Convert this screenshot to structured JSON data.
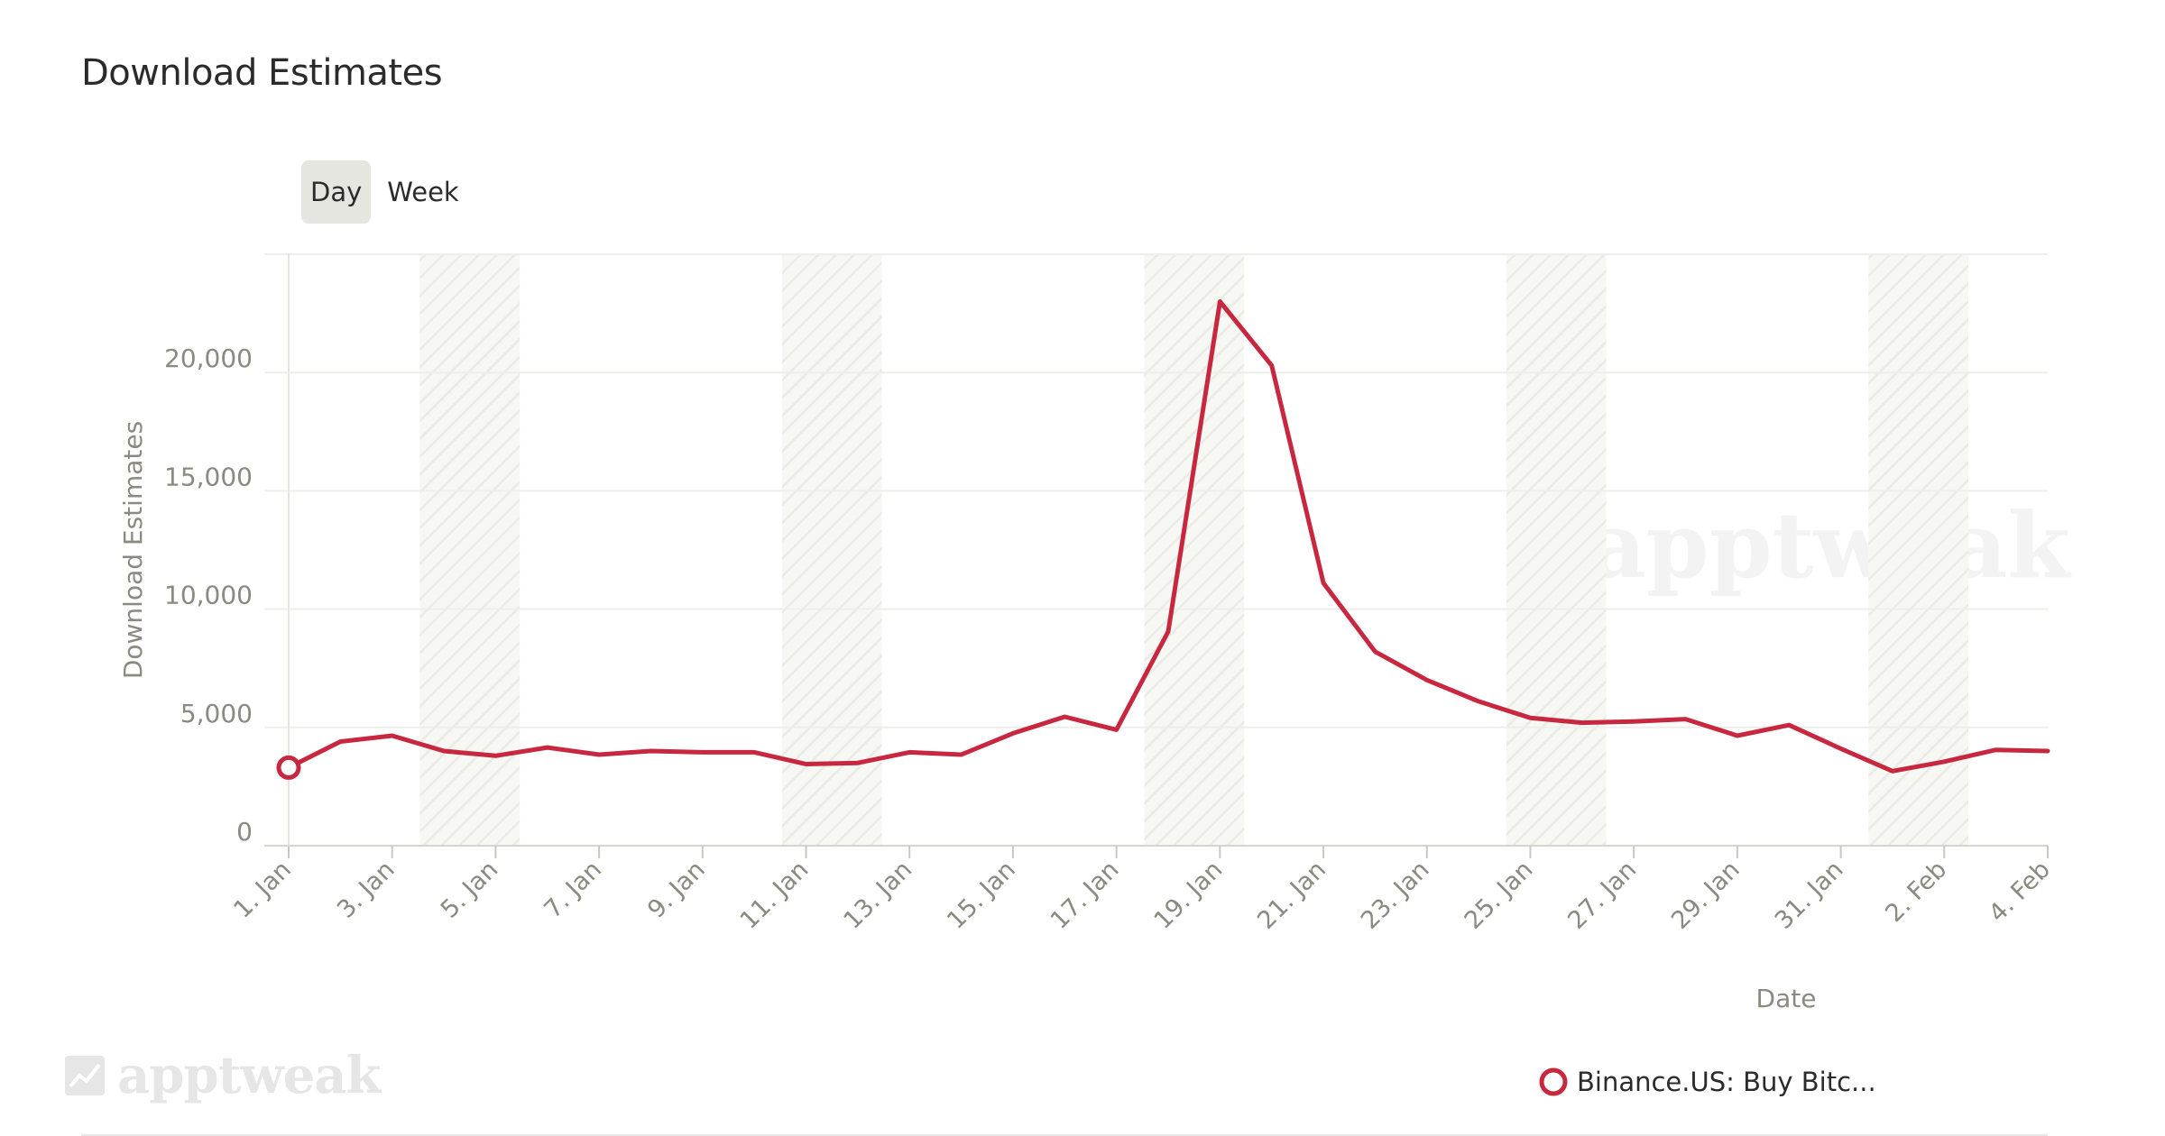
{
  "header": {
    "title": "Download Estimates"
  },
  "toggle": {
    "day_label": "Day",
    "week_label": "Week",
    "selected": "Day"
  },
  "brand": {
    "logo_text": "apptweak",
    "logo_icon": "apptweak-logo-icon"
  },
  "colors": {
    "series": "#c8283f",
    "axis_text": "#8a8a80",
    "grid": "#eeeeea",
    "weekend_band": "#f6f6f2",
    "toggle_active_bg": "#e6e6e0"
  },
  "chart_data": {
    "type": "line",
    "xlabel": "Date",
    "ylabel": "Download Estimates",
    "ylim": [
      0,
      25000
    ],
    "yticks": [
      0,
      5000,
      10000,
      15000,
      20000
    ],
    "ytick_labels": [
      "0",
      "5,000",
      "10,000",
      "15,000",
      "20,000"
    ],
    "grid": true,
    "legend_position": "bottom-right",
    "x_tick_labels": [
      "1. Jan",
      "3. Jan",
      "5. Jan",
      "7. Jan",
      "9. Jan",
      "11. Jan",
      "13. Jan",
      "15. Jan",
      "17. Jan",
      "19. Jan",
      "21. Jan",
      "23. Jan",
      "25. Jan",
      "27. Jan",
      "29. Jan",
      "31. Jan",
      "2. Feb",
      "4. Feb"
    ],
    "weekend_bands": [
      [
        "4. Jan",
        "5. Jan"
      ],
      [
        "11. Jan",
        "12. Jan"
      ],
      [
        "18. Jan",
        "19. Jan"
      ],
      [
        "25. Jan",
        "26. Jan"
      ],
      [
        "1. Feb",
        "2. Feb"
      ]
    ],
    "x": [
      "1. Jan",
      "2. Jan",
      "3. Jan",
      "4. Jan",
      "5. Jan",
      "6. Jan",
      "7. Jan",
      "8. Jan",
      "9. Jan",
      "10. Jan",
      "11. Jan",
      "12. Jan",
      "13. Jan",
      "14. Jan",
      "15. Jan",
      "16. Jan",
      "17. Jan",
      "18. Jan",
      "19. Jan",
      "20. Jan",
      "21. Jan",
      "22. Jan",
      "23. Jan",
      "24. Jan",
      "25. Jan",
      "26. Jan",
      "27. Jan",
      "28. Jan",
      "29. Jan",
      "30. Jan",
      "31. Jan",
      "1. Feb",
      "2. Feb",
      "3. Feb",
      "4. Feb"
    ],
    "series": [
      {
        "name": "Binance.US: Buy Bitc...",
        "values": [
          3300,
          4400,
          4650,
          4000,
          3800,
          4150,
          3850,
          4000,
          3950,
          3950,
          3450,
          3500,
          3950,
          3850,
          4750,
          5450,
          4900,
          9050,
          23000,
          20300,
          11100,
          8200,
          7000,
          6100,
          5400,
          5200,
          5250,
          5350,
          4650,
          5100,
          4100,
          3150,
          3550,
          4050,
          4000
        ]
      }
    ]
  }
}
